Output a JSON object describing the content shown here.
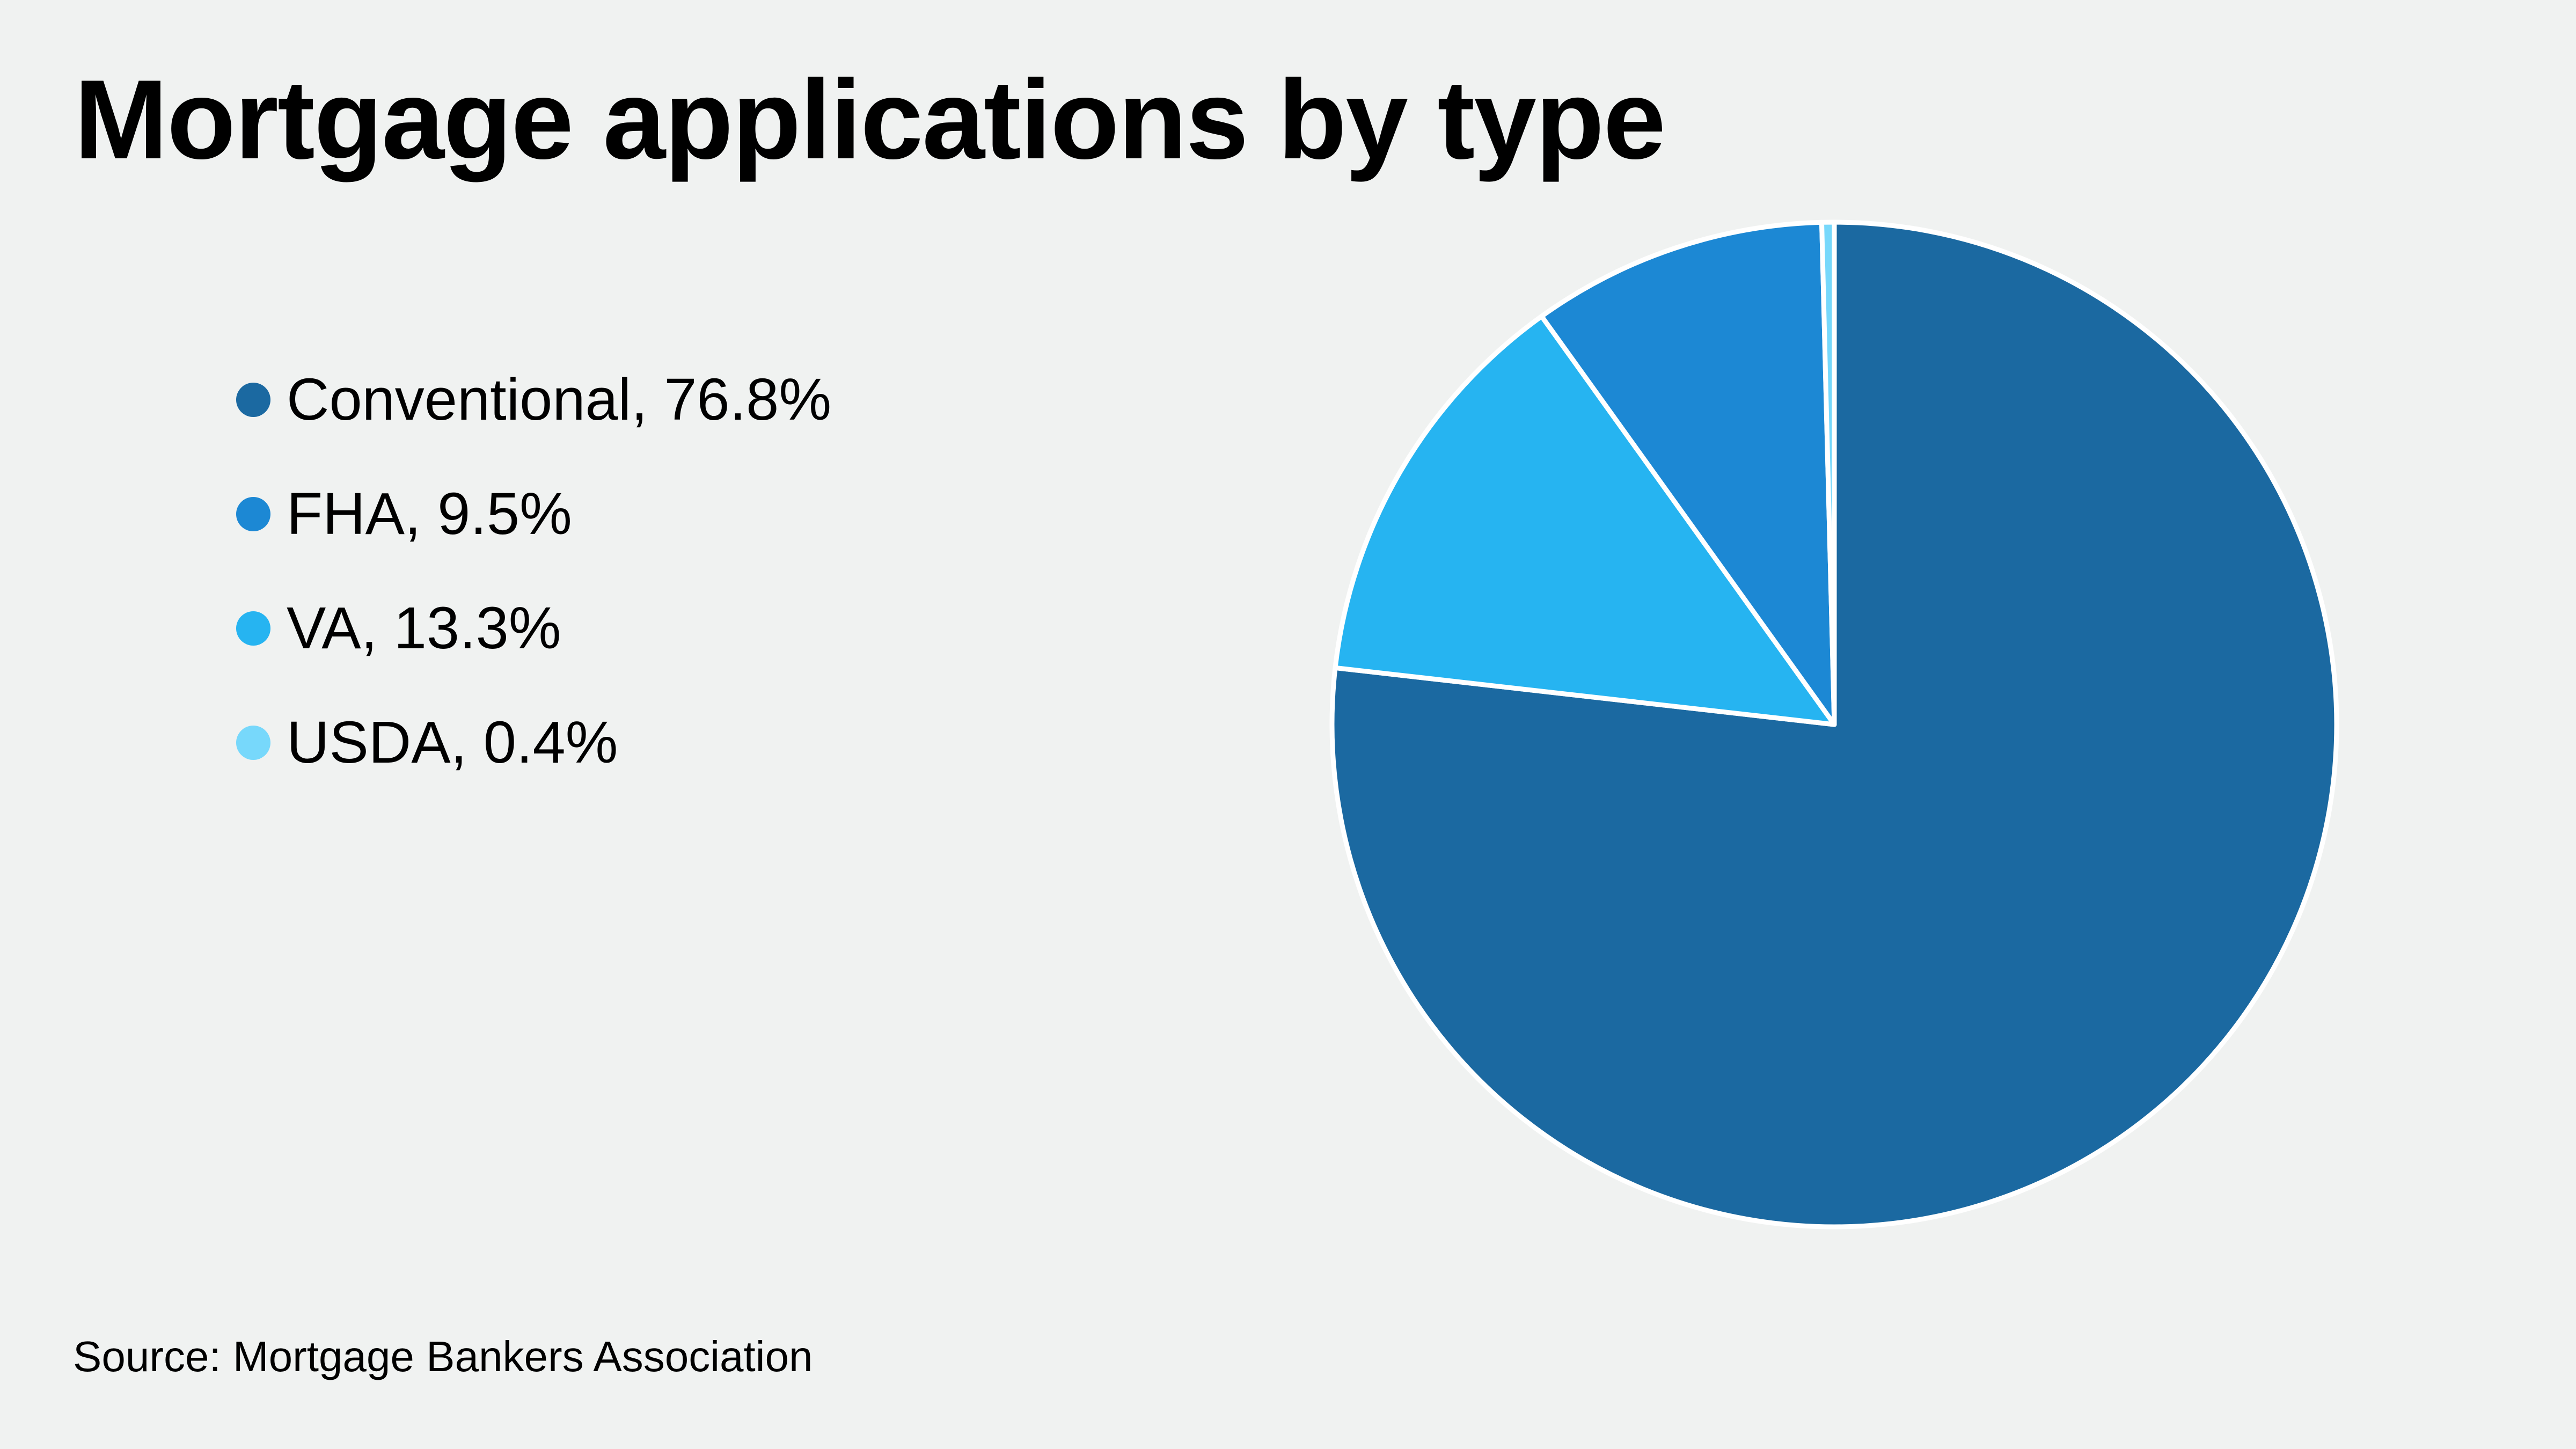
{
  "chart_data": {
    "type": "pie",
    "title": "Mortgage applications by type",
    "source": "Source: Mortgage Bankers Association",
    "legend_position": "left",
    "slices": [
      {
        "key": "conventional",
        "name": "Conventional",
        "value": 76.8,
        "label": "Conventional, 76.8%",
        "color": "#1b69a1"
      },
      {
        "key": "fha",
        "name": "FHA",
        "value": 9.5,
        "label": "FHA, 9.5%",
        "color": "#1c88d4"
      },
      {
        "key": "va",
        "name": "VA",
        "value": 13.3,
        "label": "VA, 13.3%",
        "color": "#26b4f1"
      },
      {
        "key": "usda",
        "name": "USDA",
        "value": 0.4,
        "label": "USDA, 0.4%",
        "color": "#77d8fb"
      }
    ]
  }
}
